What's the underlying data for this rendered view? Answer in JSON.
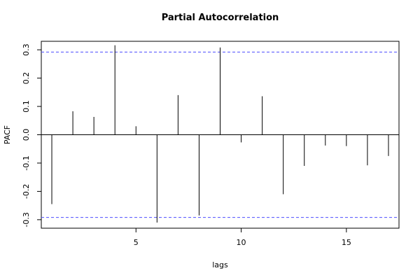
{
  "chart_data": {
    "type": "bar",
    "title": "Partial Autocorrelation",
    "xlabel": "lags",
    "ylabel": "PACF",
    "xlim": [
      0.5,
      17.5
    ],
    "ylim": [
      -0.33,
      0.33
    ],
    "x_ticks": [
      5,
      10,
      15
    ],
    "y_ticks": [
      -0.3,
      -0.2,
      -0.1,
      0.0,
      0.1,
      0.2,
      0.3
    ],
    "y_tick_labels": [
      "-0.3",
      "-0.2",
      "-0.1",
      "0.0",
      "0.1",
      "0.2",
      "0.3"
    ],
    "confidence_band": 0.292,
    "confidence_band_color": "#4d4dff",
    "bar_color": "#000000",
    "grid": false,
    "lags": [
      1,
      2,
      3,
      4,
      5,
      6,
      7,
      8,
      9,
      10,
      11,
      12,
      13,
      14,
      15,
      16,
      17
    ],
    "values": [
      -0.245,
      0.083,
      0.063,
      0.316,
      0.03,
      -0.31,
      0.14,
      -0.285,
      0.308,
      -0.027,
      0.136,
      -0.21,
      -0.11,
      -0.038,
      -0.04,
      -0.108,
      -0.075
    ]
  }
}
